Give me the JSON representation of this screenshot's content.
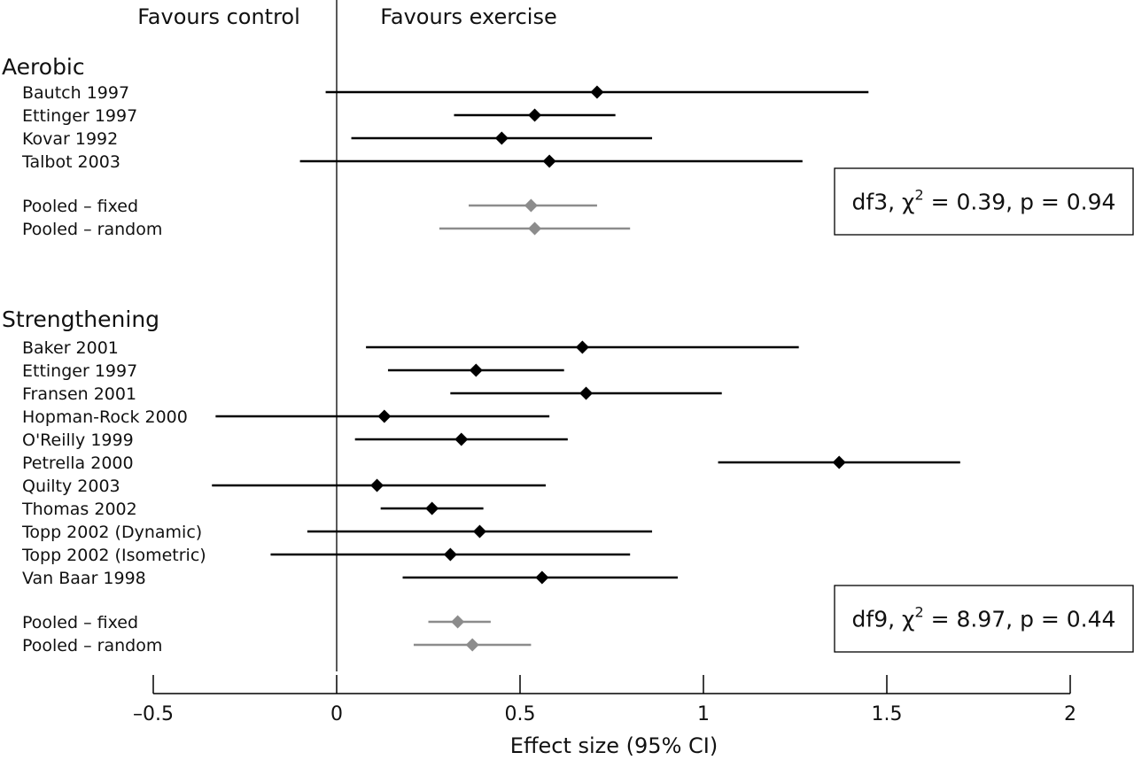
{
  "chart_data": {
    "type": "forest",
    "xlabel": "Effect size (95% CI)",
    "xlim": [
      -0.5,
      2
    ],
    "xticks": [
      -0.5,
      0,
      0.5,
      1,
      1.5,
      2
    ],
    "xtick_labels": [
      "–0.5",
      "0",
      "0.5",
      "1",
      "1.5",
      "2"
    ],
    "reference_line": 0,
    "favours_left": "Favours control",
    "favours_right": "Favours exercise",
    "colors": {
      "study": "#000000",
      "pooled": "#8c8c8c"
    },
    "groups": [
      {
        "name": "Aerobic",
        "studies": [
          {
            "label": "Bautch 1997",
            "estimate": 0.71,
            "lower": -0.03,
            "upper": 1.45
          },
          {
            "label": "Ettinger 1997",
            "estimate": 0.54,
            "lower": 0.32,
            "upper": 0.76
          },
          {
            "label": "Kovar 1992",
            "estimate": 0.45,
            "lower": 0.04,
            "upper": 0.86
          },
          {
            "label": "Talbot 2003",
            "estimate": 0.58,
            "lower": -0.1,
            "upper": 1.27
          }
        ],
        "pooled": [
          {
            "label": "Pooled – fixed",
            "estimate": 0.53,
            "lower": 0.36,
            "upper": 0.71
          },
          {
            "label": "Pooled – random",
            "estimate": 0.54,
            "lower": 0.28,
            "upper": 0.8
          }
        ],
        "heterogeneity": {
          "df": "df3",
          "chi2": "0.39",
          "p": "0.94"
        }
      },
      {
        "name": "Strengthening",
        "studies": [
          {
            "label": "Baker 2001",
            "estimate": 0.67,
            "lower": 0.08,
            "upper": 1.26
          },
          {
            "label": "Ettinger 1997",
            "estimate": 0.38,
            "lower": 0.14,
            "upper": 0.62
          },
          {
            "label": "Fransen 2001",
            "estimate": 0.68,
            "lower": 0.31,
            "upper": 1.05
          },
          {
            "label": "Hopman-Rock 2000",
            "estimate": 0.13,
            "lower": -0.33,
            "upper": 0.58
          },
          {
            "label": "O'Reilly 1999",
            "estimate": 0.34,
            "lower": 0.05,
            "upper": 0.63
          },
          {
            "label": "Petrella 2000",
            "estimate": 1.37,
            "lower": 1.04,
            "upper": 1.7
          },
          {
            "label": "Quilty 2003",
            "estimate": 0.11,
            "lower": -0.34,
            "upper": 0.57
          },
          {
            "label": "Thomas 2002",
            "estimate": 0.26,
            "lower": 0.12,
            "upper": 0.4
          },
          {
            "label": "Topp 2002 (Dynamic)",
            "estimate": 0.39,
            "lower": -0.08,
            "upper": 0.86
          },
          {
            "label": "Topp 2002 (Isometric)",
            "estimate": 0.31,
            "lower": -0.18,
            "upper": 0.8
          },
          {
            "label": "Van Baar 1998",
            "estimate": 0.56,
            "lower": 0.18,
            "upper": 0.93
          }
        ],
        "pooled": [
          {
            "label": "Pooled – fixed",
            "estimate": 0.33,
            "lower": 0.25,
            "upper": 0.42
          },
          {
            "label": "Pooled – random",
            "estimate": 0.37,
            "lower": 0.21,
            "upper": 0.53
          }
        ],
        "heterogeneity": {
          "df": "df9",
          "chi2": "8.97",
          "p": "0.44"
        }
      }
    ]
  }
}
